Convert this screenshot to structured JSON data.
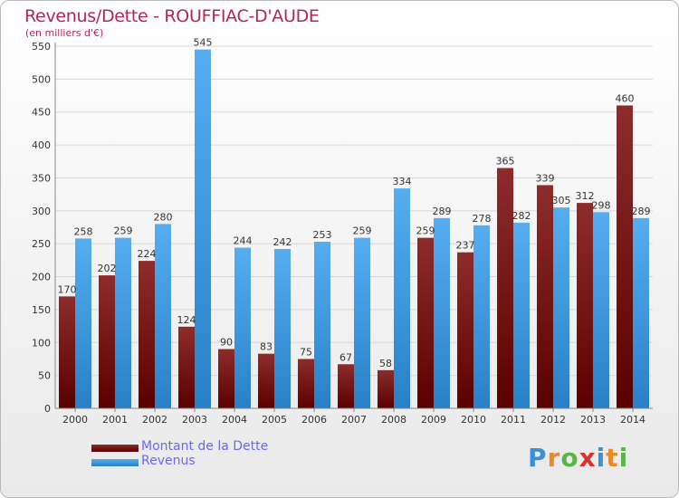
{
  "chart_data": {
    "type": "bar",
    "title": "Revenus/Dette - ROUFFIAC-D'AUDE",
    "subtitle": "(en milliers d'€)",
    "categories": [
      "2000",
      "2001",
      "2002",
      "2003",
      "2004",
      "2005",
      "2006",
      "2007",
      "2008",
      "2009",
      "2010",
      "2011",
      "2012",
      "2013",
      "2014"
    ],
    "series": [
      {
        "name": "Montant de la Dette",
        "color": "#7a1a1a",
        "values": [
          170,
          202,
          224,
          124,
          90,
          83,
          75,
          67,
          58,
          259,
          237,
          365,
          339,
          312,
          460
        ]
      },
      {
        "name": "Revenus",
        "color": "#3d9ee8",
        "values": [
          258,
          259,
          280,
          545,
          244,
          242,
          253,
          259,
          334,
          289,
          278,
          282,
          305,
          298,
          289
        ]
      }
    ],
    "ylim": [
      0,
      550
    ],
    "yticks": [
      0,
      50,
      100,
      150,
      200,
      250,
      300,
      350,
      400,
      450,
      500,
      550
    ],
    "grid": true,
    "legend_position": "bottom-left"
  },
  "brand": {
    "letters": [
      {
        "char": "P",
        "color": "#3a8fd6"
      },
      {
        "char": "r",
        "color": "#e8892a"
      },
      {
        "char": "o",
        "color": "#59b548"
      },
      {
        "char": "x",
        "color": "#d6342a"
      },
      {
        "char": "i",
        "color": "#3a8fd6"
      },
      {
        "char": "t",
        "color": "#e8892a"
      },
      {
        "char": "i",
        "color": "#59b548"
      }
    ]
  }
}
